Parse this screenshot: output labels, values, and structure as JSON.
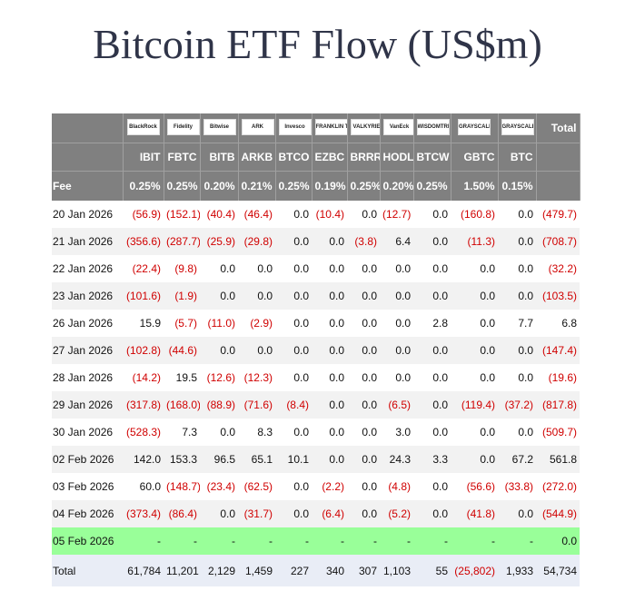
{
  "title": "Bitcoin ETF Flow (US$m)",
  "table": {
    "logos": [
      "BlackRock",
      "Fidelity",
      "Bitwise",
      "ARK",
      "Invesco",
      "FRANKLIN TEMPLETON",
      "VALKYRIE",
      "VanEck",
      "WISDOMTREE",
      "GRAYSCALE",
      "GRAYSCALE"
    ],
    "total_header": "Total",
    "tickers": [
      "IBIT",
      "FBTC",
      "BITB",
      "ARKB",
      "BTCO",
      "EZBC",
      "BRRR",
      "HODL",
      "BTCW",
      "GBTC",
      "BTC"
    ],
    "fee_label": "Fee",
    "fees": [
      "0.25%",
      "0.25%",
      "0.20%",
      "0.21%",
      "0.25%",
      "0.19%",
      "0.25%",
      "0.20%",
      "0.25%",
      "1.50%",
      "0.15%"
    ],
    "rows": [
      [
        "20 Jan 2026",
        "(56.9)",
        "(152.1)",
        "(40.4)",
        "(46.4)",
        "0.0",
        "(10.4)",
        "0.0",
        "(12.7)",
        "0.0",
        "(160.8)",
        "0.0",
        "(479.7)"
      ],
      [
        "21 Jan 2026",
        "(356.6)",
        "(287.7)",
        "(25.9)",
        "(29.8)",
        "0.0",
        "0.0",
        "(3.8)",
        "6.4",
        "0.0",
        "(11.3)",
        "0.0",
        "(708.7)"
      ],
      [
        "22 Jan 2026",
        "(22.4)",
        "(9.8)",
        "0.0",
        "0.0",
        "0.0",
        "0.0",
        "0.0",
        "0.0",
        "0.0",
        "0.0",
        "0.0",
        "(32.2)"
      ],
      [
        "23 Jan 2026",
        "(101.6)",
        "(1.9)",
        "0.0",
        "0.0",
        "0.0",
        "0.0",
        "0.0",
        "0.0",
        "0.0",
        "0.0",
        "0.0",
        "(103.5)"
      ],
      [
        "26 Jan 2026",
        "15.9",
        "(5.7)",
        "(11.0)",
        "(2.9)",
        "0.0",
        "0.0",
        "0.0",
        "0.0",
        "2.8",
        "0.0",
        "7.7",
        "6.8"
      ],
      [
        "27 Jan 2026",
        "(102.8)",
        "(44.6)",
        "0.0",
        "0.0",
        "0.0",
        "0.0",
        "0.0",
        "0.0",
        "0.0",
        "0.0",
        "0.0",
        "(147.4)"
      ],
      [
        "28 Jan 2026",
        "(14.2)",
        "19.5",
        "(12.6)",
        "(12.3)",
        "0.0",
        "0.0",
        "0.0",
        "0.0",
        "0.0",
        "0.0",
        "0.0",
        "(19.6)"
      ],
      [
        "29 Jan 2026",
        "(317.8)",
        "(168.0)",
        "(88.9)",
        "(71.6)",
        "(8.4)",
        "0.0",
        "0.0",
        "(6.5)",
        "0.0",
        "(119.4)",
        "(37.2)",
        "(817.8)"
      ],
      [
        "30 Jan 2026",
        "(528.3)",
        "7.3",
        "0.0",
        "8.3",
        "0.0",
        "0.0",
        "0.0",
        "3.0",
        "0.0",
        "0.0",
        "0.0",
        "(509.7)"
      ],
      [
        "02 Feb 2026",
        "142.0",
        "153.3",
        "96.5",
        "65.1",
        "10.1",
        "0.0",
        "0.0",
        "24.3",
        "3.3",
        "0.0",
        "67.2",
        "561.8"
      ],
      [
        "03 Feb 2026",
        "60.0",
        "(148.7)",
        "(23.4)",
        "(62.5)",
        "0.0",
        "(2.2)",
        "0.0",
        "(4.8)",
        "0.0",
        "(56.6)",
        "(33.8)",
        "(272.0)"
      ],
      [
        "04 Feb 2026",
        "(373.4)",
        "(86.4)",
        "0.0",
        "(31.7)",
        "0.0",
        "(6.4)",
        "0.0",
        "(5.2)",
        "0.0",
        "(41.8)",
        "0.0",
        "(544.9)"
      ],
      [
        "05 Feb 2026",
        "-",
        "-",
        "-",
        "-",
        "-",
        "-",
        "-",
        "-",
        "-",
        "-",
        "-",
        "0.0"
      ]
    ],
    "total_row": [
      "Total",
      "61,784",
      "11,201",
      "2,129",
      "1,459",
      "227",
      "340",
      "307",
      "1,103",
      "55",
      "(25,802)",
      "1,933",
      "54,734"
    ]
  }
}
